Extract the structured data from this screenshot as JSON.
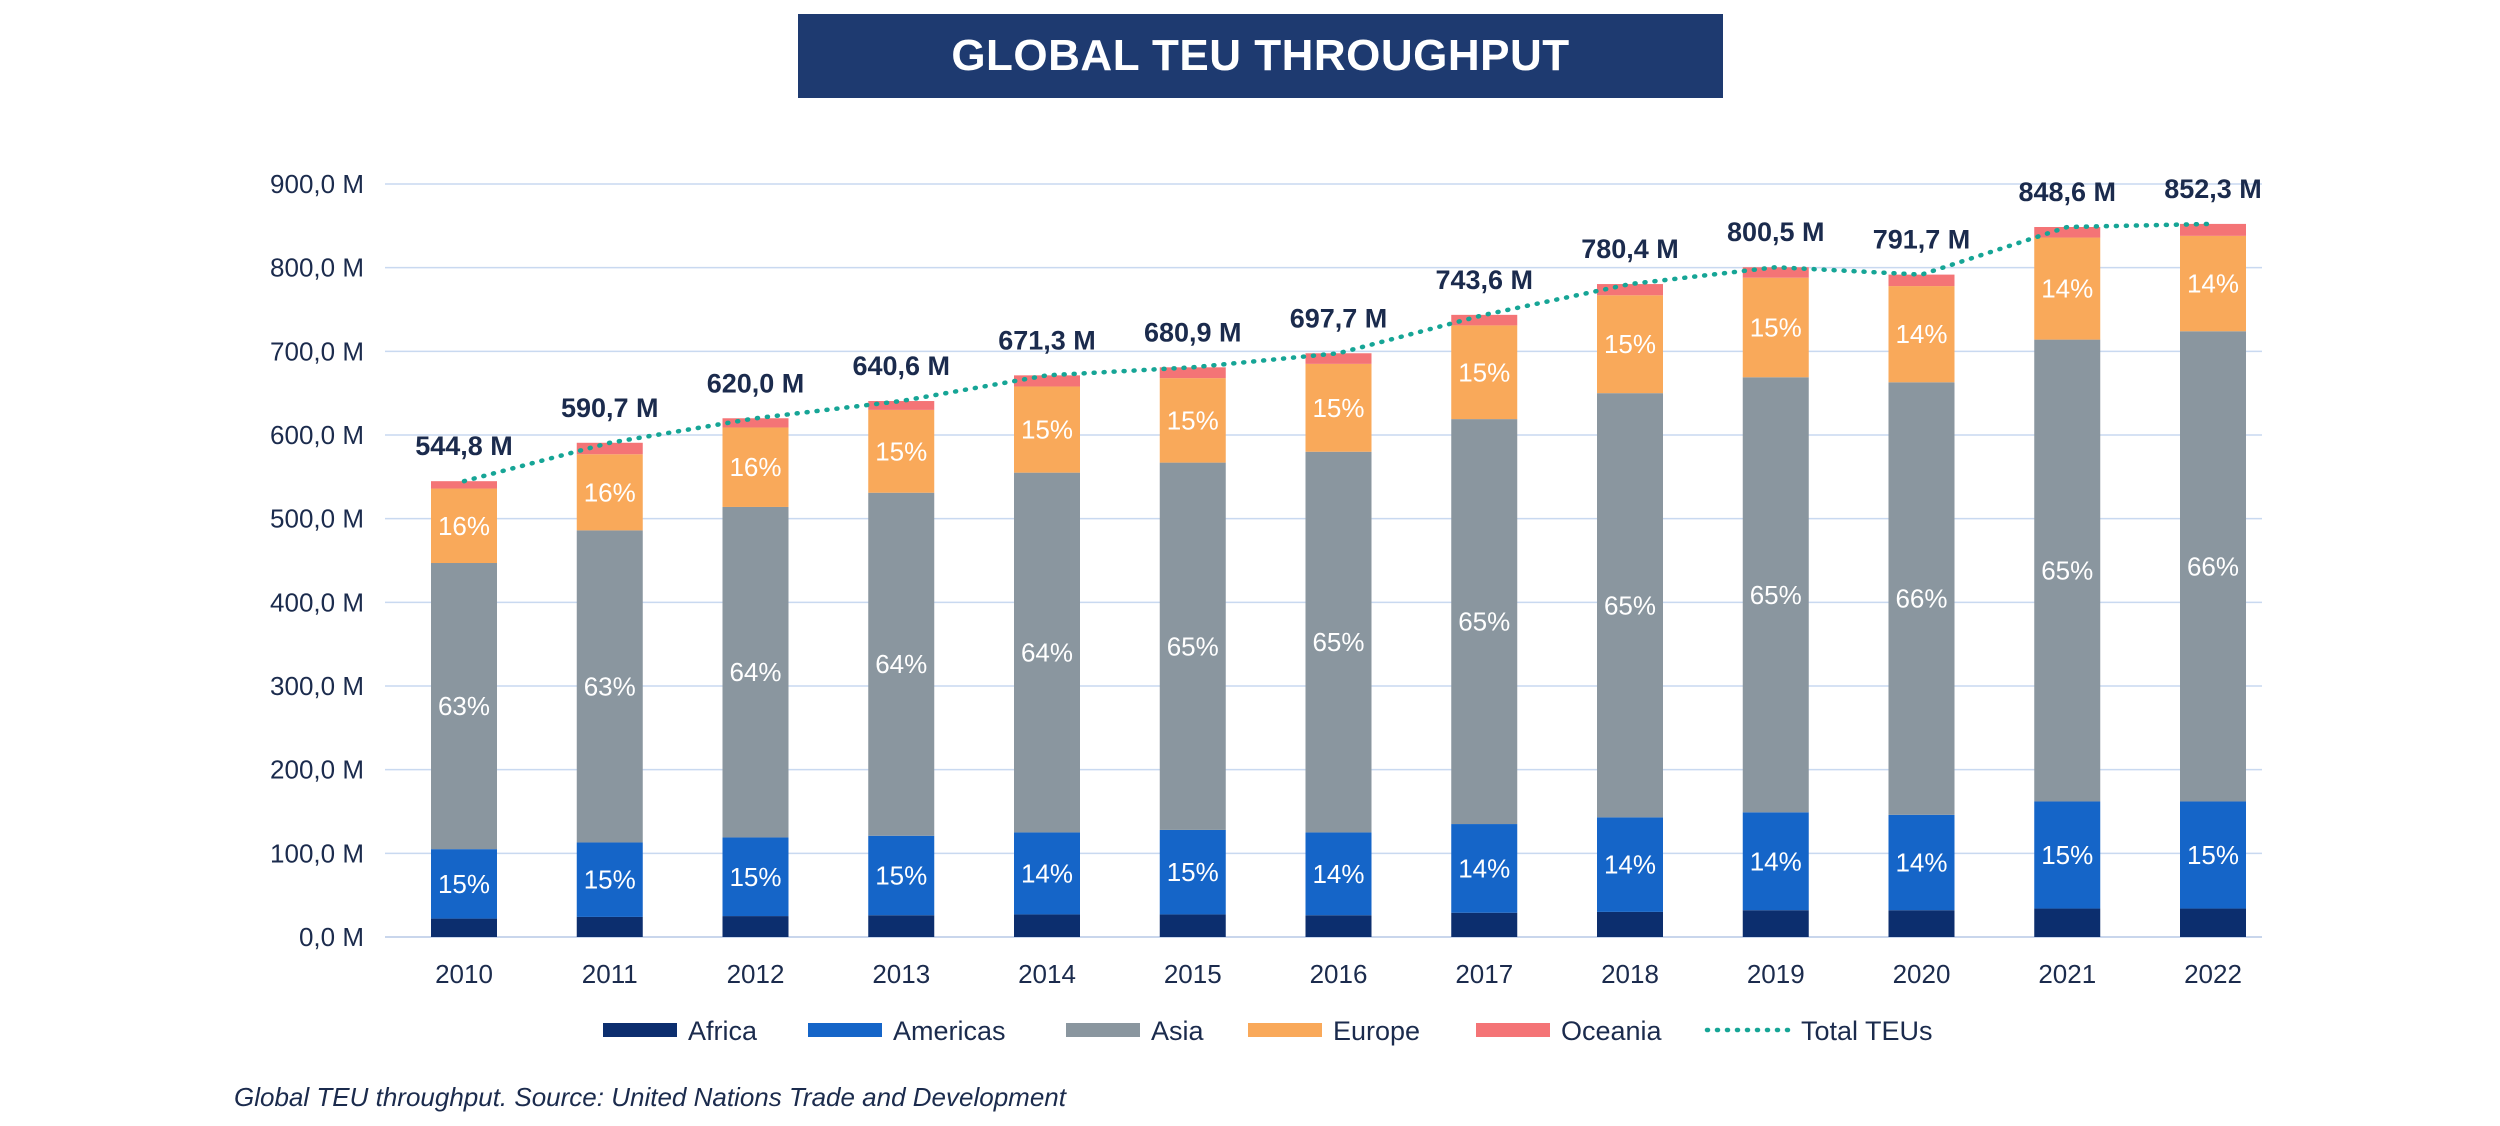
{
  "header": {
    "title": "GLOBAL TEU THROUGHPUT"
  },
  "caption": "Global TEU throughput. Source: United Nations Trade and Development",
  "colors": {
    "Africa": "#0c2e6e",
    "Americas": "#1565c8",
    "Asia": "#8a969f",
    "Europe": "#f9a95a",
    "Oceania": "#f47476",
    "Total": "#16a596",
    "grid": "#c9d9f0",
    "text": "#1b2b4d"
  },
  "chart_data": {
    "type": "bar",
    "stacked": true,
    "title": "GLOBAL TEU THROUGHPUT",
    "categories": [
      "2010",
      "2011",
      "2012",
      "2013",
      "2014",
      "2015",
      "2016",
      "2017",
      "2018",
      "2019",
      "2020",
      "2021",
      "2022"
    ],
    "ylim": [
      0,
      900
    ],
    "yticks": [
      "0,0 M",
      "100,0 M",
      "200,0 M",
      "300,0 M",
      "400,0 M",
      "500,0 M",
      "600,0 M",
      "700,0 M",
      "800,0 M",
      "900,0 M"
    ],
    "grid": true,
    "legend_position": "bottom",
    "series": [
      {
        "name": "Africa",
        "values": [
          22,
          24,
          25,
          26,
          27,
          27,
          26,
          29,
          30,
          32,
          32,
          34,
          34
        ],
        "labels": [
          "",
          "",
          "",
          "",
          "",
          "",
          "",
          "",
          "",
          "",
          "",
          "",
          ""
        ]
      },
      {
        "name": "Americas",
        "values": [
          83,
          89,
          94,
          95,
          98,
          101,
          99,
          106,
          113,
          117,
          114,
          128,
          128
        ],
        "labels": [
          "15%",
          "15%",
          "15%",
          "15%",
          "14%",
          "15%",
          "14%",
          "14%",
          "14%",
          "14%",
          "14%",
          "15%",
          "15%"
        ]
      },
      {
        "name": "Asia",
        "values": [
          342,
          373,
          395,
          410,
          430,
          439,
          455,
          484,
          507,
          520,
          517,
          552,
          562
        ],
        "labels": [
          "63%",
          "63%",
          "64%",
          "64%",
          "64%",
          "65%",
          "65%",
          "65%",
          "65%",
          "65%",
          "66%",
          "65%",
          "66%"
        ]
      },
      {
        "name": "Europe",
        "values": [
          89,
          91,
          95,
          99,
          103,
          101,
          105,
          112,
          117,
          119,
          115,
          122,
          114
        ],
        "labels": [
          "16%",
          "16%",
          "16%",
          "15%",
          "15%",
          "15%",
          "15%",
          "15%",
          "15%",
          "15%",
          "14%",
          "14%",
          "14%"
        ]
      },
      {
        "name": "Oceania",
        "values": [
          8.8,
          13.7,
          11,
          10.6,
          13.3,
          12.9,
          12.7,
          12.6,
          13.4,
          12.5,
          13.7,
          12.6,
          14.3
        ],
        "labels": [
          "",
          "",
          "",
          "",
          "",
          "",
          "",
          "",
          "",
          "",
          "",
          "",
          ""
        ]
      }
    ],
    "total": {
      "name": "Total TEUs",
      "values": [
        544.8,
        590.7,
        620.0,
        640.6,
        671.3,
        680.9,
        697.7,
        743.6,
        780.4,
        800.5,
        791.7,
        848.6,
        852.3
      ],
      "labels": [
        "544,8 M",
        "590,7 M",
        "620,0 M",
        "640,6 M",
        "671,3 M",
        "680,9 M",
        "697,7 M",
        "743,6 M",
        "780,4 M",
        "800,5 M",
        "791,7 M",
        "848,6 M",
        "852,3 M"
      ]
    },
    "legend": [
      "Africa",
      "Americas",
      "Asia",
      "Europe",
      "Oceania",
      "Total TEUs"
    ]
  }
}
